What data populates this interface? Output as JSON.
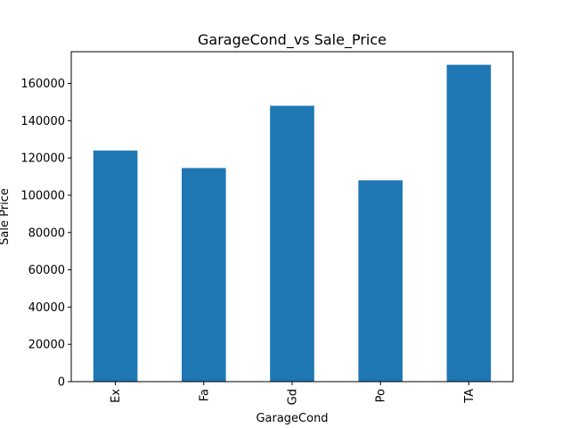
{
  "chart_data": {
    "type": "bar",
    "title": "GarageCond_vs Sale_Price",
    "xlabel": "GarageCond",
    "ylabel": "Sale Price",
    "categories": [
      "Ex",
      "Fa",
      "Gd",
      "Po",
      "TA"
    ],
    "values": [
      124000,
      114600,
      148000,
      108000,
      170000
    ],
    "ylim": [
      0,
      177000
    ],
    "yticks": [
      0,
      20000,
      40000,
      60000,
      80000,
      100000,
      120000,
      140000,
      160000
    ],
    "bar_color": "#1f77b4",
    "grid": false,
    "legend": "none"
  }
}
